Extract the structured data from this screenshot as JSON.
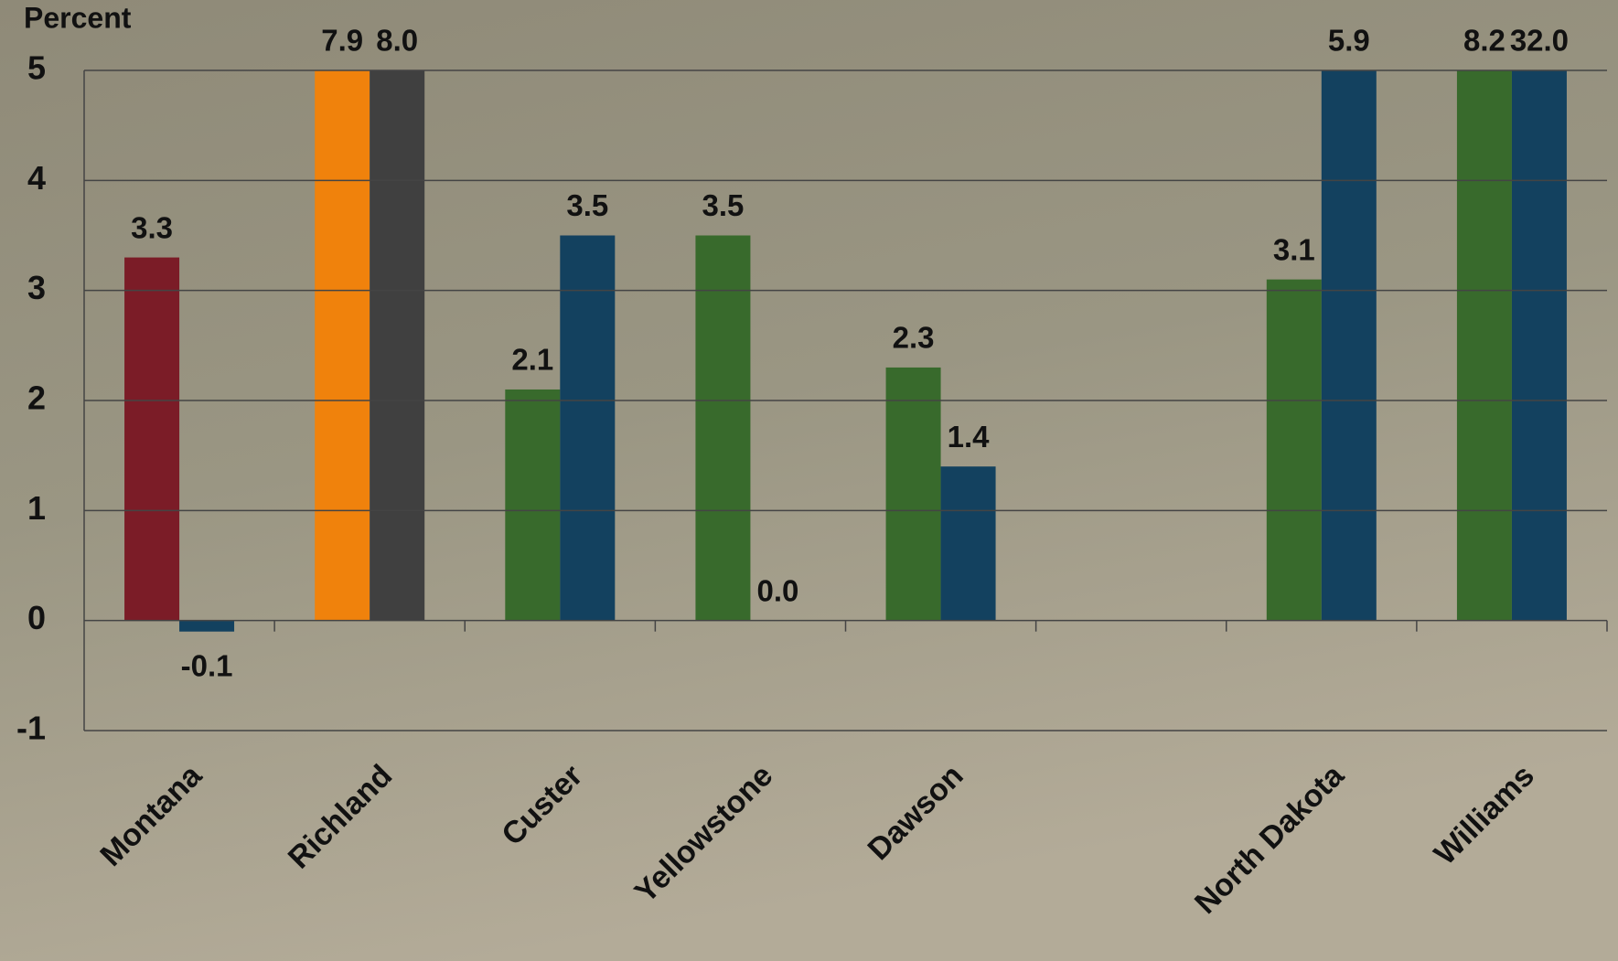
{
  "chart_data": {
    "type": "bar",
    "y_label": "Percent",
    "categories": [
      "Montana",
      "Richland",
      "Custer",
      "Yellowstone",
      "Dawson",
      null,
      "North Dakota",
      "Williams"
    ],
    "series": [
      {
        "colors": [
          "#7b1c27",
          "#f0820c",
          "#386a2c",
          "#386a2c",
          "#386a2c",
          null,
          "#386a2c",
          "#386a2c"
        ],
        "values": [
          3.3,
          7.9,
          2.1,
          3.5,
          2.3,
          null,
          3.1,
          8.2
        ],
        "value_labels": [
          "3.3",
          "7.9",
          "2.1",
          "3.5",
          "2.3",
          null,
          "3.1",
          "8.2"
        ]
      },
      {
        "colors": [
          "#13415f",
          "#404040",
          "#13415f",
          "#13415f",
          "#13415f",
          null,
          "#13415f",
          "#13415f"
        ],
        "values": [
          -0.1,
          8.0,
          3.5,
          0.0,
          1.4,
          null,
          5.9,
          32.0
        ],
        "value_labels": [
          "-0.1",
          "8.0",
          "3.5",
          "0.0",
          "1.4",
          null,
          "5.9",
          "32.0"
        ]
      }
    ],
    "ylim": [
      -1,
      5
    ],
    "yticks": [
      -1,
      0,
      1,
      2,
      3,
      4,
      5
    ],
    "grid": true
  }
}
